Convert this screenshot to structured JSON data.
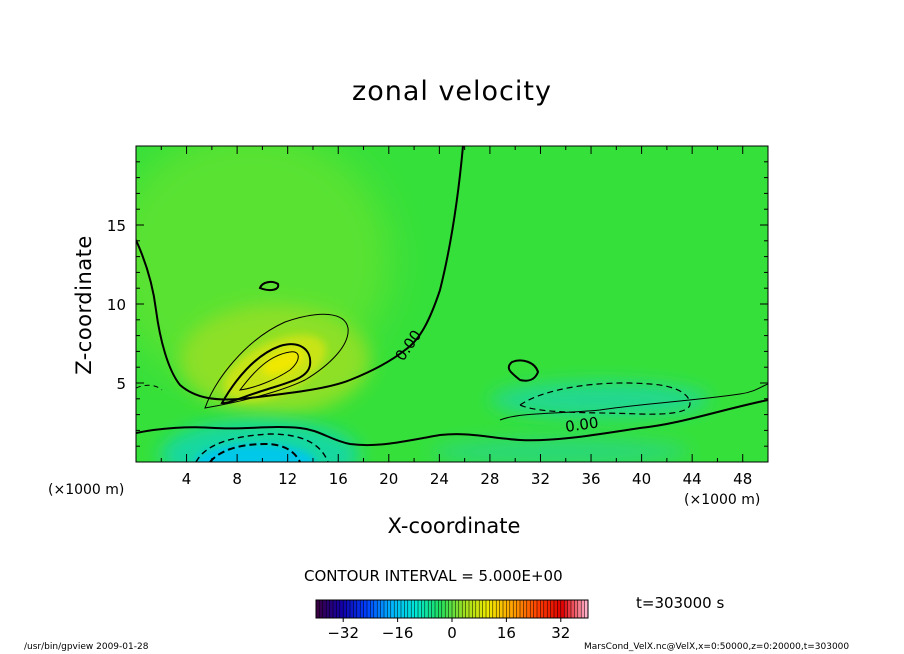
{
  "chart_data": {
    "type": "contour",
    "title": "zonal velocity",
    "xlabel": "X-coordinate",
    "ylabel": "Z-coordinate",
    "x_unit": "(×1000 m)",
    "y_unit": "(×1000 m)",
    "xlim": [
      0,
      50
    ],
    "ylim": [
      0,
      20
    ],
    "xticks": [
      4,
      8,
      12,
      16,
      20,
      24,
      28,
      32,
      36,
      40,
      44,
      48
    ],
    "yticks": [
      5,
      10,
      15
    ],
    "contour_interval_text": "CONTOUR INTERVAL = 5.000E+00",
    "contour_labels": [
      "0.00",
      "0.00"
    ],
    "colorbar": {
      "min": -40,
      "max": 40,
      "ticks": [
        -32,
        -16,
        0,
        16,
        32
      ],
      "tick_labels": [
        "−32",
        "−16",
        "0",
        "16",
        "32"
      ],
      "colors": [
        "#3a0046",
        "#1200a8",
        "#0040ff",
        "#00b4ff",
        "#00e8d8",
        "#20e060",
        "#a0e020",
        "#f0e800",
        "#ffa000",
        "#ff4000",
        "#e00000",
        "#ffb0c8"
      ]
    },
    "background_value_color": "#33e033",
    "features": [
      {
        "name": "positive maximum",
        "x": 11.5,
        "z": 6.5,
        "value": 12,
        "color": "#f0e800"
      },
      {
        "name": "negative minimum",
        "x": 10,
        "z": 0.5,
        "value": -15,
        "color": "#00c0ff"
      },
      {
        "name": "weak negative band",
        "x": 38,
        "z": 4,
        "value": -5,
        "color": "#20d8a0"
      }
    ]
  },
  "time_text": "t=303000 s",
  "footer_left": "/usr/bin/gpview   2009-01-28",
  "footer_right": "MarsCond_VelX.nc@VelX,x=0:50000,z=0:20000,t=303000"
}
